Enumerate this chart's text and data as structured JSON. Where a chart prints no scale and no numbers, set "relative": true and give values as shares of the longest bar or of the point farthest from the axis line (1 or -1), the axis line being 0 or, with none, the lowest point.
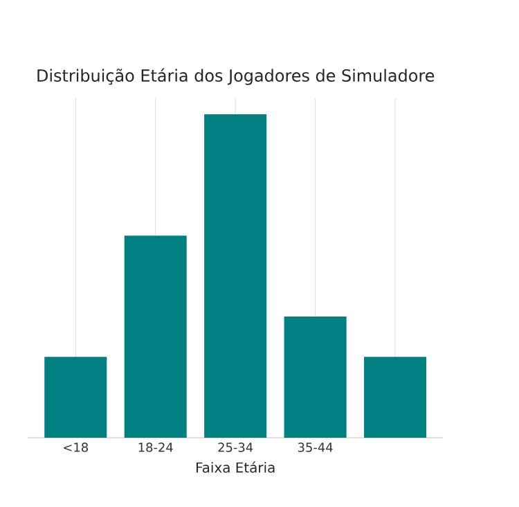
{
  "chart_data": {
    "type": "bar",
    "title": "Distribuição Etária dos Jogadores de Simuladore",
    "xlabel": "Faixa Etária",
    "categories": [
      "<18",
      "18-24",
      "25-34",
      "35-44",
      null
    ],
    "values": [
      0.25,
      0.625,
      1,
      0.375,
      0.25
    ],
    "color": "#008080",
    "relative": true,
    "grid": true
  }
}
